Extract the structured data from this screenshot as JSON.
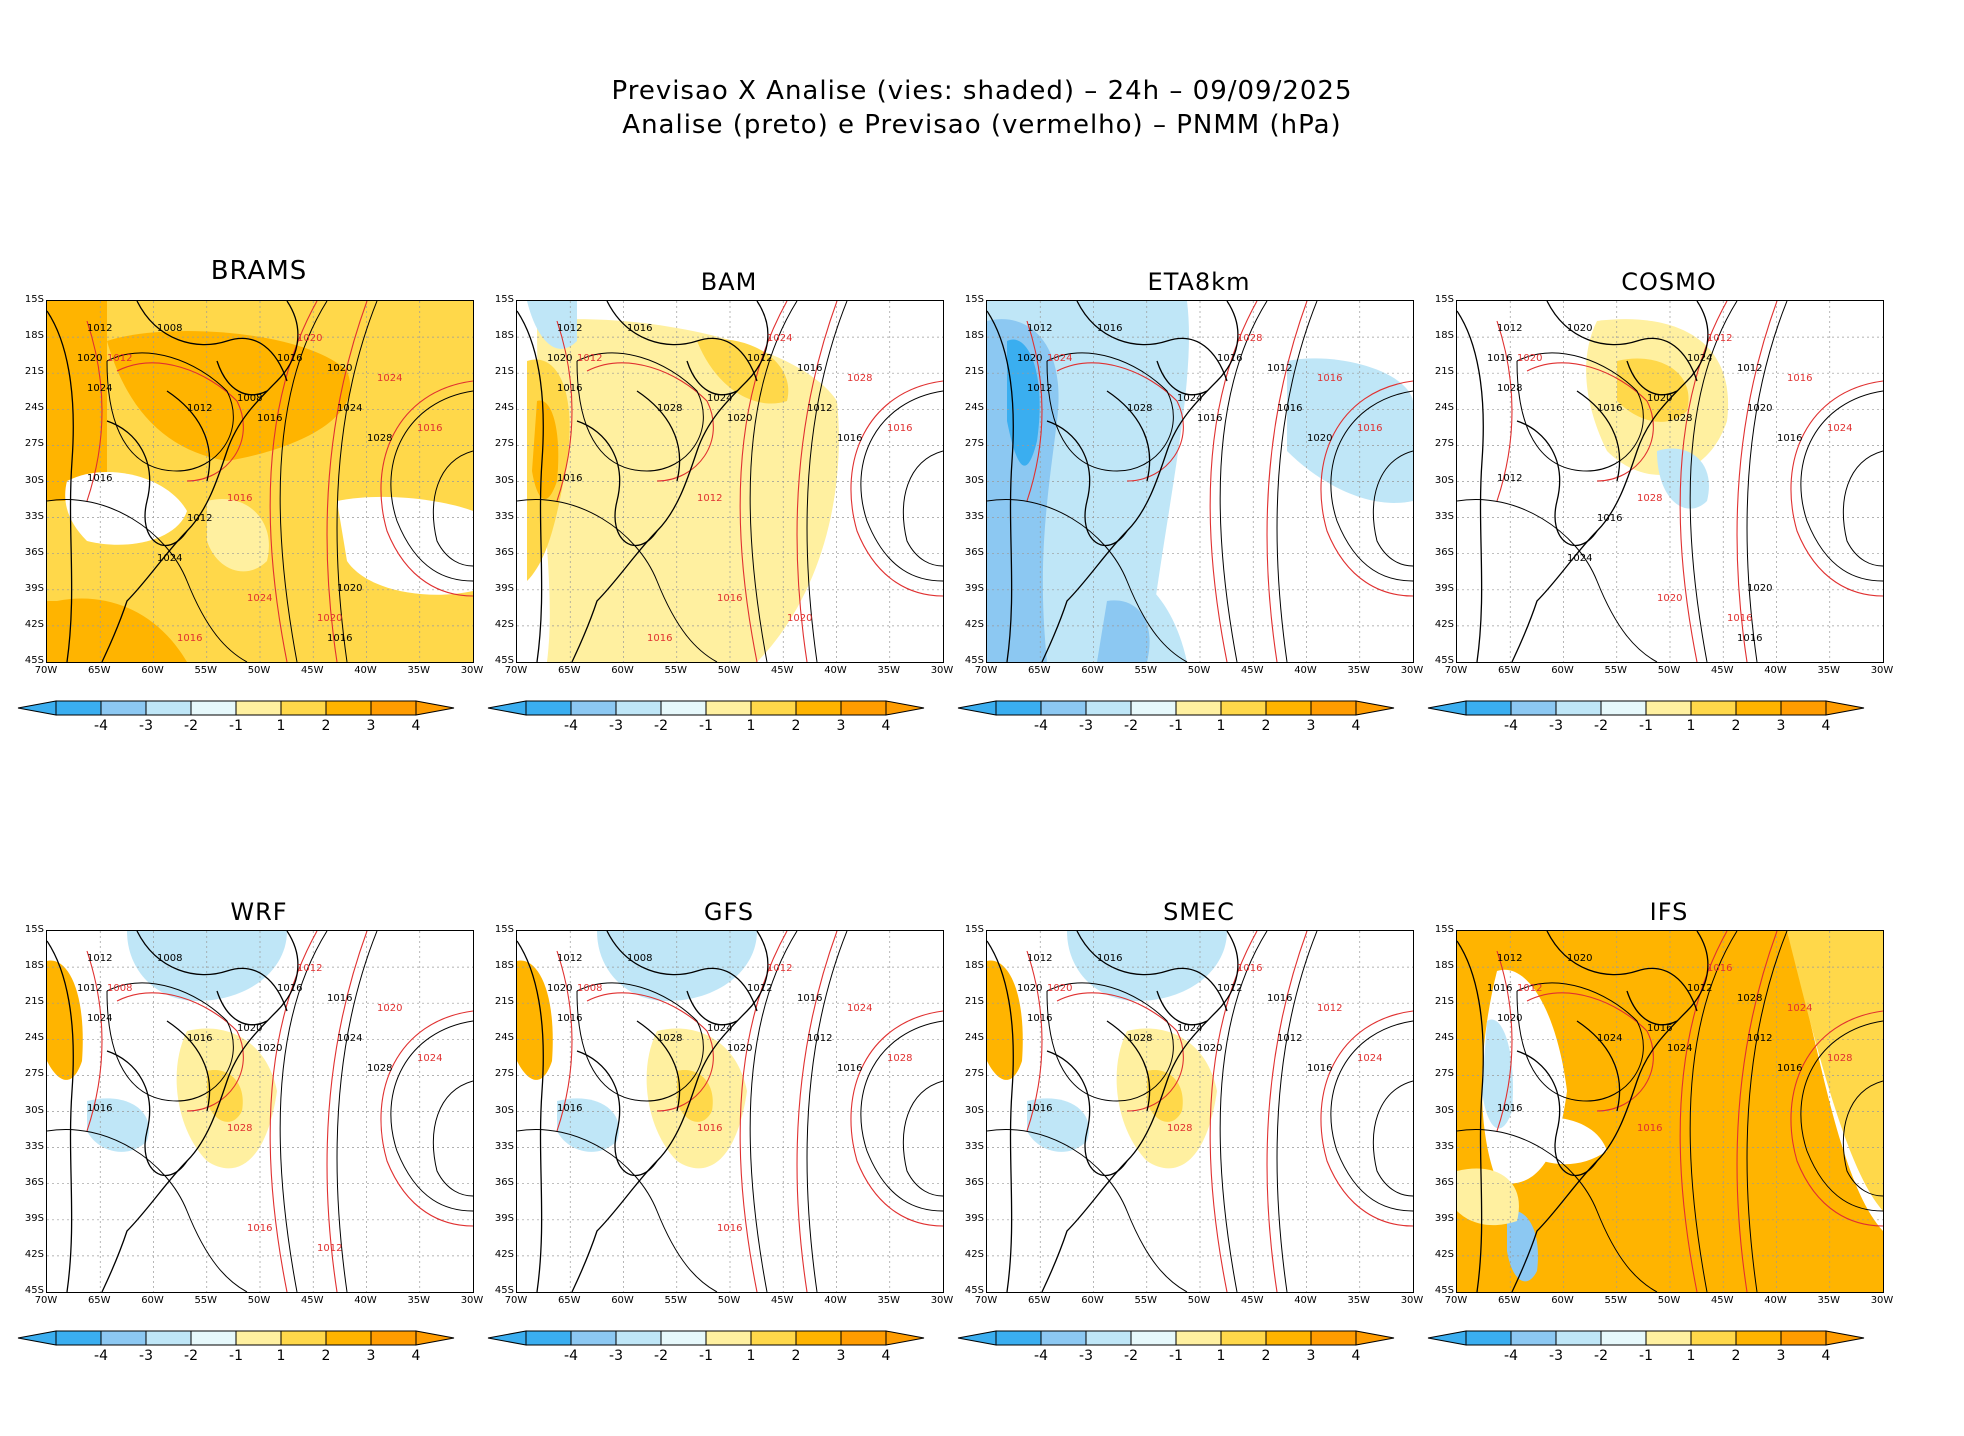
{
  "header": {
    "line1": "Previsao X Analise (vies: shaded) – 24h – 09/09/2025",
    "line2": "Analise (preto) e Previsao (vermelho) – PNMM (hPa)"
  },
  "axes": {
    "lat_labels": [
      "15S",
      "18S",
      "21S",
      "24S",
      "27S",
      "30S",
      "33S",
      "36S",
      "39S",
      "42S",
      "45S"
    ],
    "lon_labels": [
      "70W",
      "65W",
      "60W",
      "55W",
      "50W",
      "45W",
      "40W",
      "35W",
      "30W"
    ]
  },
  "colorbar": {
    "labels": [
      "-4",
      "-3",
      "-2",
      "-1",
      "1",
      "2",
      "3",
      "4"
    ],
    "colors": [
      "#3aaef0",
      "#8cc8f2",
      "#bfe6f7",
      "#e6f8fb",
      "#ffffff",
      "#fff0a0",
      "#ffd84a",
      "#ffb400",
      "#ff9c00"
    ]
  },
  "colors": {
    "analysis_contour": "#000000",
    "forecast_contour": "#e03030",
    "coast": "#000000"
  },
  "panels": [
    {
      "name": "BRAMS",
      "bias": "warm_strong",
      "labels_black": [
        "1012",
        "1008",
        "1020",
        "1024",
        "1016",
        "1008",
        "1012",
        "1020",
        "1024",
        "1028",
        "1016",
        "1016",
        "1012",
        "1024",
        "1020",
        "1016"
      ],
      "labels_red": [
        "1012",
        "1020",
        "1024",
        "1016",
        "1016",
        "1024",
        "1020",
        "1016"
      ]
    },
    {
      "name": "BAM",
      "bias": "warm_mild",
      "labels_black": [
        "1012",
        "1016",
        "1020",
        "1016",
        "1012",
        "1024",
        "1028",
        "1016",
        "1012",
        "1016",
        "1020",
        "1016"
      ],
      "labels_red": [
        "1012",
        "1024",
        "1028",
        "1016",
        "1012",
        "1016",
        "1020",
        "1016"
      ]
    },
    {
      "name": "ETA8km",
      "bias": "cold",
      "labels_black": [
        "1012",
        "1016",
        "1020",
        "1012",
        "1016",
        "1024",
        "1028",
        "1012",
        "1016",
        "1020",
        "1016"
      ],
      "labels_red": [
        "1024",
        "1028",
        "1016",
        "1016"
      ]
    },
    {
      "name": "COSMO",
      "bias": "mixed",
      "labels_black": [
        "1012",
        "1020",
        "1016",
        "1028",
        "1024",
        "1020",
        "1016",
        "1012",
        "1020",
        "1016",
        "1028",
        "1012",
        "1016",
        "1024",
        "1020",
        "1016"
      ],
      "labels_red": [
        "1020",
        "1012",
        "1016",
        "1024",
        "1028",
        "1020",
        "1016"
      ]
    },
    {
      "name": "WRF",
      "bias": "mixed_light",
      "labels_black": [
        "1012",
        "1008",
        "1012",
        "1024",
        "1016",
        "1020",
        "1016",
        "1016",
        "1024",
        "1028",
        "1020",
        "1016"
      ],
      "labels_red": [
        "1008",
        "1012",
        "1020",
        "1024",
        "1028",
        "1016",
        "1012"
      ]
    },
    {
      "name": "GFS",
      "bias": "mixed_light",
      "labels_black": [
        "1012",
        "1008",
        "1020",
        "1016",
        "1012",
        "1024",
        "1028",
        "1016",
        "1012",
        "1016",
        "1020",
        "1016"
      ],
      "labels_red": [
        "1008",
        "1012",
        "1024",
        "1028",
        "1016",
        "1016"
      ]
    },
    {
      "name": "SMEC",
      "bias": "mixed_light",
      "labels_black": [
        "1012",
        "1016",
        "1020",
        "1016",
        "1012",
        "1024",
        "1028",
        "1016",
        "1012",
        "1016",
        "1020",
        "1016"
      ],
      "labels_red": [
        "1020",
        "1016",
        "1012",
        "1024",
        "1028"
      ]
    },
    {
      "name": "IFS",
      "bias": "warm_east",
      "labels_black": [
        "1012",
        "1020",
        "1016",
        "1020",
        "1012",
        "1016",
        "1024",
        "1028",
        "1012",
        "1016",
        "1024",
        "1016"
      ],
      "labels_red": [
        "1012",
        "1016",
        "1024",
        "1028",
        "1016"
      ]
    }
  ]
}
